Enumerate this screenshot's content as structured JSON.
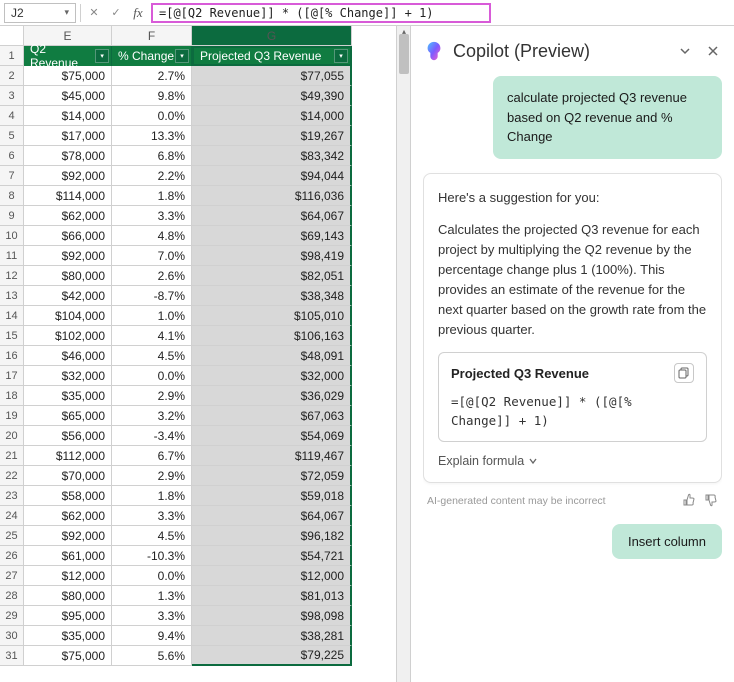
{
  "formulaBar": {
    "nameBox": "J2",
    "formula": "=[@[Q2 Revenue]] * ([@[% Change]] + 1)"
  },
  "columns": {
    "E": "E",
    "F": "F",
    "G": "G"
  },
  "headers": {
    "e": "Q2 Revenue",
    "f": "% Change",
    "g": "Projected Q3 Revenue"
  },
  "rows": [
    {
      "n": 2,
      "e": "$75,000",
      "f": "2.7%",
      "g": "$77,055"
    },
    {
      "n": 3,
      "e": "$45,000",
      "f": "9.8%",
      "g": "$49,390"
    },
    {
      "n": 4,
      "e": "$14,000",
      "f": "0.0%",
      "g": "$14,000"
    },
    {
      "n": 5,
      "e": "$17,000",
      "f": "13.3%",
      "g": "$19,267"
    },
    {
      "n": 6,
      "e": "$78,000",
      "f": "6.8%",
      "g": "$83,342"
    },
    {
      "n": 7,
      "e": "$92,000",
      "f": "2.2%",
      "g": "$94,044"
    },
    {
      "n": 8,
      "e": "$114,000",
      "f": "1.8%",
      "g": "$116,036"
    },
    {
      "n": 9,
      "e": "$62,000",
      "f": "3.3%",
      "g": "$64,067"
    },
    {
      "n": 10,
      "e": "$66,000",
      "f": "4.8%",
      "g": "$69,143"
    },
    {
      "n": 11,
      "e": "$92,000",
      "f": "7.0%",
      "g": "$98,419"
    },
    {
      "n": 12,
      "e": "$80,000",
      "f": "2.6%",
      "g": "$82,051"
    },
    {
      "n": 13,
      "e": "$42,000",
      "f": "-8.7%",
      "g": "$38,348"
    },
    {
      "n": 14,
      "e": "$104,000",
      "f": "1.0%",
      "g": "$105,010"
    },
    {
      "n": 15,
      "e": "$102,000",
      "f": "4.1%",
      "g": "$106,163"
    },
    {
      "n": 16,
      "e": "$46,000",
      "f": "4.5%",
      "g": "$48,091"
    },
    {
      "n": 17,
      "e": "$32,000",
      "f": "0.0%",
      "g": "$32,000"
    },
    {
      "n": 18,
      "e": "$35,000",
      "f": "2.9%",
      "g": "$36,029"
    },
    {
      "n": 19,
      "e": "$65,000",
      "f": "3.2%",
      "g": "$67,063"
    },
    {
      "n": 20,
      "e": "$56,000",
      "f": "-3.4%",
      "g": "$54,069"
    },
    {
      "n": 21,
      "e": "$112,000",
      "f": "6.7%",
      "g": "$119,467"
    },
    {
      "n": 22,
      "e": "$70,000",
      "f": "2.9%",
      "g": "$72,059"
    },
    {
      "n": 23,
      "e": "$58,000",
      "f": "1.8%",
      "g": "$59,018"
    },
    {
      "n": 24,
      "e": "$62,000",
      "f": "3.3%",
      "g": "$64,067"
    },
    {
      "n": 25,
      "e": "$92,000",
      "f": "4.5%",
      "g": "$96,182"
    },
    {
      "n": 26,
      "e": "$61,000",
      "f": "-10.3%",
      "g": "$54,721"
    },
    {
      "n": 27,
      "e": "$12,000",
      "f": "0.0%",
      "g": "$12,000"
    },
    {
      "n": 28,
      "e": "$80,000",
      "f": "1.3%",
      "g": "$81,013"
    },
    {
      "n": 29,
      "e": "$95,000",
      "f": "3.3%",
      "g": "$98,098"
    },
    {
      "n": 30,
      "e": "$35,000",
      "f": "9.4%",
      "g": "$38,281"
    },
    {
      "n": 31,
      "e": "$75,000",
      "f": "5.6%",
      "g": "$79,225"
    }
  ],
  "copilot": {
    "title": "Copilot (Preview)",
    "userPrompt": "calculate  projected Q3 revenue based on Q2 revenue and % Change",
    "suggestionIntro": "Here's a suggestion for you:",
    "explanation": "Calculates the projected Q3 revenue for each project by multiplying the Q2 revenue by the percentage change plus 1 (100%). This provides an estimate of the revenue for the next quarter based on the growth rate from the previous quarter.",
    "formulaTitle": "Projected Q3 Revenue",
    "formulaCode": "=[@[Q2 Revenue]] * ([@[% Change]] + 1)",
    "explainLink": "Explain formula",
    "disclaimer": "AI-generated content may be incorrect",
    "actionButton": "Insert column"
  }
}
